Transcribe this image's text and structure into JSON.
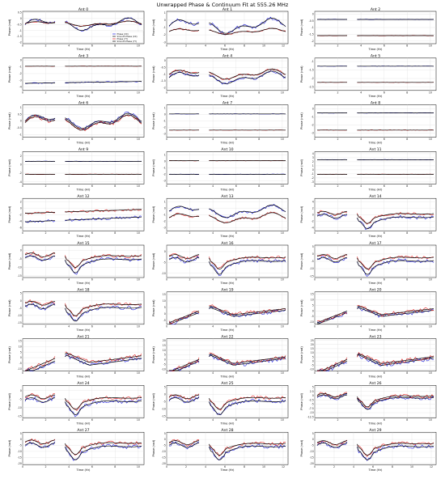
{
  "figure": {
    "title": "Unwrapped Phase & Continuum Fit at 555.26 MHz",
    "xlabel": "Time (Hr)",
    "ylabel": "Phase (rad)",
    "legend": [
      "Phase (XX)",
      "Smooth Phase (XX)",
      "Phase (YY)",
      "Smooth Phase (YY)"
    ],
    "colors": {
      "xx": "#1f1fe0",
      "yy": "#e01f1f",
      "smooth": "#000000",
      "grid": "#d9d9d9"
    }
  },
  "chart_data": [
    {
      "type": "line",
      "title": "Ant 0",
      "xticks": [
        0,
        2,
        4,
        6,
        8,
        10
      ],
      "yticks": [
        -2.0,
        -1.5,
        -1.0,
        -0.5,
        0.0,
        0.5
      ],
      "ylim": [
        -2.1,
        0.6
      ],
      "xlim": [
        0,
        10.5
      ],
      "series": [
        {
          "name": "Phase (XX)",
          "shape": "wiggle",
          "level": 0.6,
          "amp": 0.25
        },
        {
          "name": "Phase (YY)",
          "shape": "wiggle",
          "level": 0.62,
          "amp": 0.1
        }
      ]
    },
    {
      "type": "line",
      "title": "Ant 1",
      "xticks": [
        0,
        2,
        4,
        6,
        8,
        10,
        12
      ],
      "yticks": [
        -3,
        -2,
        -1,
        0,
        1
      ],
      "ylim": [
        -3.2,
        1.2
      ],
      "xlim": [
        0,
        12.5
      ],
      "series": [
        {
          "name": "Phase (XX)",
          "shape": "wiggle",
          "level": 0.55,
          "amp": 0.3
        },
        {
          "name": "Phase (YY)",
          "shape": "wiggle",
          "level": 0.38,
          "amp": 0.12
        }
      ]
    },
    {
      "type": "line",
      "title": "Ant 2",
      "xticks": [
        0,
        2,
        4,
        6,
        8,
        10
      ],
      "yticks": [
        -2.0,
        -1.5,
        -1.0,
        -0.5,
        0.0
      ],
      "ylim": [
        -2.2,
        0.2
      ],
      "xlim": [
        0,
        10.5
      ],
      "series": [
        {
          "name": "Phase (YY)",
          "shape": "flat",
          "level": 0.25,
          "amp": 0.05
        },
        {
          "name": "Phase (XX)",
          "shape": "flat",
          "level": 0.75,
          "amp": 0.05
        }
      ]
    },
    {
      "type": "line",
      "title": "Ant 3",
      "xticks": [
        0,
        2,
        4,
        6,
        8,
        10
      ],
      "yticks": [
        -4,
        -3,
        -2,
        -1,
        0
      ],
      "ylim": [
        -4.5,
        0.3
      ],
      "xlim": [
        0,
        10.5
      ],
      "series": [
        {
          "name": "Phase (XX)",
          "shape": "rise",
          "level": 0.25,
          "amp": 0.1
        },
        {
          "name": "Phase (YY)",
          "shape": "flat",
          "level": 0.75,
          "amp": 0.04
        }
      ]
    },
    {
      "type": "line",
      "title": "Ant 4",
      "xticks": [
        0,
        2,
        4,
        6,
        8,
        10
      ],
      "yticks": [
        -2.0,
        -1.5,
        -1.0,
        -0.5,
        0.0
      ],
      "ylim": [
        -2.2,
        0.2
      ],
      "xlim": [
        0,
        10.5
      ],
      "series": [
        {
          "name": "Phase (XX)",
          "shape": "wiggle",
          "level": 0.4,
          "amp": 0.25
        },
        {
          "name": "Phase (YY)",
          "shape": "wiggle",
          "level": 0.5,
          "amp": 0.2
        }
      ]
    },
    {
      "type": "line",
      "title": "Ant 5",
      "xticks": [
        0,
        2,
        4,
        6,
        8,
        10
      ],
      "yticks": [
        -2.5,
        -2.0,
        -1.5,
        -1.0
      ],
      "ylim": [
        -2.7,
        -0.8
      ],
      "xlim": [
        0,
        10.5
      ],
      "series": [
        {
          "name": "Phase (YY)",
          "shape": "flat",
          "level": 0.25,
          "amp": 0.04
        },
        {
          "name": "Phase (XX)",
          "shape": "flat",
          "level": 0.75,
          "amp": 0.04
        }
      ]
    },
    {
      "type": "line",
      "title": "Ant 6",
      "xticks": [
        0,
        2,
        4,
        6,
        8,
        10
      ],
      "yticks": [
        -1.0,
        -0.5,
        0.0,
        0.5,
        1.0
      ],
      "ylim": [
        -1.2,
        1.2
      ],
      "xlim": [
        0,
        10.5
      ],
      "series": [
        {
          "name": "Phase (XX)",
          "shape": "wiggle",
          "level": 0.5,
          "amp": 0.3
        },
        {
          "name": "Phase (YY)",
          "shape": "wiggle",
          "level": 0.45,
          "amp": 0.3
        }
      ]
    },
    {
      "type": "line",
      "title": "Ant 7",
      "xticks": [
        0,
        2,
        4,
        6,
        8,
        10
      ],
      "yticks": [
        -3,
        -2,
        -1,
        0,
        1
      ],
      "ylim": [
        -3.5,
        1.5
      ],
      "xlim": [
        0,
        10.5
      ],
      "series": [
        {
          "name": "Phase (YY)",
          "shape": "flat",
          "level": 0.22,
          "amp": 0.05
        },
        {
          "name": "Phase (XX)",
          "shape": "flat",
          "level": 0.72,
          "amp": 0.04
        }
      ]
    },
    {
      "type": "line",
      "title": "Ant 8",
      "xticks": [
        0,
        2,
        4,
        6,
        8,
        10
      ],
      "yticks": [
        -3,
        -2,
        -1,
        0
      ],
      "ylim": [
        -3.5,
        0.5
      ],
      "xlim": [
        0,
        10.5
      ],
      "series": [
        {
          "name": "Phase (YY)",
          "shape": "flat",
          "level": 0.22,
          "amp": 0.06
        },
        {
          "name": "Phase (XX)",
          "shape": "flat",
          "level": 0.75,
          "amp": 0.05
        }
      ]
    },
    {
      "type": "line",
      "title": "Ant 9",
      "xticks": [
        0,
        2,
        4,
        6,
        8,
        10
      ],
      "yticks": [
        -4,
        -2,
        0,
        2
      ],
      "ylim": [
        -4.5,
        3
      ],
      "xlim": [
        0,
        10.5
      ],
      "series": [
        {
          "name": "Phase (YY)",
          "shape": "flat",
          "level": 0.3,
          "amp": 0.05
        },
        {
          "name": "Phase (XX)",
          "shape": "flat",
          "level": 0.7,
          "amp": 0.04
        }
      ]
    },
    {
      "type": "line",
      "title": "Ant 10",
      "xticks": [
        0,
        2,
        4,
        6,
        8,
        10
      ],
      "yticks": [
        -3,
        -2,
        -1,
        0,
        1
      ],
      "ylim": [
        -3.5,
        1.5
      ],
      "xlim": [
        0,
        10.5
      ],
      "series": [
        {
          "name": "Phase (XX)",
          "shape": "flat",
          "level": 0.3,
          "amp": 0.05
        },
        {
          "name": "Phase (YY)",
          "shape": "flat",
          "level": 0.72,
          "amp": 0.04
        }
      ]
    },
    {
      "type": "line",
      "title": "Ant 11",
      "xticks": [
        0,
        2,
        4,
        6,
        8,
        10
      ],
      "yticks": [
        -3,
        -2,
        -1,
        0,
        1,
        2,
        3,
        4
      ],
      "ylim": [
        -3.5,
        4.5
      ],
      "xlim": [
        0,
        10.5
      ],
      "series": [
        {
          "name": "Phase (YY)",
          "shape": "flat",
          "level": 0.3,
          "amp": 0.04
        },
        {
          "name": "Phase (XX)",
          "shape": "flat",
          "level": 0.75,
          "amp": 0.04
        }
      ]
    },
    {
      "type": "line",
      "title": "Ant 12",
      "xticks": [
        0,
        2,
        4,
        6,
        8,
        10
      ],
      "yticks": [
        -6,
        -4,
        -2,
        0,
        2
      ],
      "ylim": [
        -7,
        3
      ],
      "xlim": [
        0,
        10.5
      ],
      "series": [
        {
          "name": "Phase (XX)",
          "shape": "rise",
          "level": 0.35,
          "amp": 0.25
        },
        {
          "name": "Phase (YY)",
          "shape": "rise",
          "level": 0.6,
          "amp": 0.2
        }
      ]
    },
    {
      "type": "line",
      "title": "Ant 13",
      "xticks": [
        0,
        2,
        4,
        6,
        8,
        10
      ],
      "yticks": [
        -3,
        -2,
        -1,
        0,
        1
      ],
      "ylim": [
        -3.5,
        1.5
      ],
      "xlim": [
        0,
        10.5
      ],
      "series": [
        {
          "name": "Phase (XX)",
          "shape": "wiggle",
          "level": 0.6,
          "amp": 0.25
        },
        {
          "name": "Phase (YY)",
          "shape": "wiggle",
          "level": 0.4,
          "amp": 0.2
        }
      ]
    },
    {
      "type": "line",
      "title": "Ant 14",
      "xticks": [
        0,
        2,
        4,
        6,
        8,
        10
      ],
      "yticks": [
        -4,
        -2,
        0,
        2,
        4
      ],
      "ylim": [
        -5,
        5
      ],
      "xlim": [
        0,
        10.5
      ],
      "series": [
        {
          "name": "Phase (XX)",
          "shape": "dip",
          "level": 0.45,
          "amp": 0.3
        },
        {
          "name": "Phase (YY)",
          "shape": "dip",
          "level": 0.55,
          "amp": 0.25
        }
      ]
    },
    {
      "type": "line",
      "title": "Ant 15",
      "xticks": [
        0,
        2,
        4,
        6,
        8,
        10
      ],
      "yticks": [
        -15,
        -10,
        -5,
        0
      ],
      "ylim": [
        -16,
        3
      ],
      "xlim": [
        0,
        10.5
      ],
      "series": [
        {
          "name": "Phase (XX)",
          "shape": "dip",
          "level": 0.6,
          "amp": 0.35
        },
        {
          "name": "Phase (YY)",
          "shape": "dip",
          "level": 0.7,
          "amp": 0.3
        }
      ]
    },
    {
      "type": "line",
      "title": "Ant 16",
      "xticks": [
        0,
        2,
        4,
        6,
        8,
        10
      ],
      "yticks": [
        -10,
        -5,
        0
      ],
      "ylim": [
        -12,
        3
      ],
      "xlim": [
        0,
        10.5
      ],
      "series": [
        {
          "name": "Phase (XX)",
          "shape": "dip",
          "level": 0.55,
          "amp": 0.35
        },
        {
          "name": "Phase (YY)",
          "shape": "dip",
          "level": 0.65,
          "amp": 0.3
        }
      ]
    },
    {
      "type": "line",
      "title": "Ant 17",
      "xticks": [
        0,
        2,
        4,
        6,
        8,
        10
      ],
      "yticks": [
        -15,
        -10,
        -5,
        0,
        5
      ],
      "ylim": [
        -16,
        6
      ],
      "xlim": [
        0,
        10.5
      ],
      "series": [
        {
          "name": "Phase (XX)",
          "shape": "dip",
          "level": 0.55,
          "amp": 0.35
        },
        {
          "name": "Phase (YY)",
          "shape": "dip",
          "level": 0.65,
          "amp": 0.3
        }
      ]
    },
    {
      "type": "line",
      "title": "Ant 18",
      "xticks": [
        0,
        2,
        4,
        6,
        8,
        10
      ],
      "yticks": [
        -15,
        -10,
        -5,
        0,
        5
      ],
      "ylim": [
        -16,
        6
      ],
      "xlim": [
        0,
        10.5
      ],
      "series": [
        {
          "name": "Phase (XX)",
          "shape": "dip",
          "level": 0.55,
          "amp": 0.35
        },
        {
          "name": "Phase (YY)",
          "shape": "dip",
          "level": 0.65,
          "amp": 0.3
        }
      ]
    },
    {
      "type": "line",
      "title": "Ant 19",
      "xticks": [
        0,
        2,
        4,
        6,
        8,
        10
      ],
      "yticks": [
        -5,
        0,
        5,
        10,
        15
      ],
      "ylim": [
        -8,
        17
      ],
      "xlim": [
        0,
        10.5
      ],
      "series": [
        {
          "name": "Phase (XX)",
          "shape": "hump",
          "level": 0.35,
          "amp": 0.35
        },
        {
          "name": "Phase (YY)",
          "shape": "hump",
          "level": 0.4,
          "amp": 0.35
        }
      ]
    },
    {
      "type": "line",
      "title": "Ant 20",
      "xticks": [
        0,
        2,
        4,
        6,
        8,
        10
      ],
      "yticks": [
        -10,
        -5,
        0,
        5,
        10,
        15
      ],
      "ylim": [
        -12,
        17
      ],
      "xlim": [
        0,
        10.5
      ],
      "series": [
        {
          "name": "Phase (XX)",
          "shape": "hump",
          "level": 0.35,
          "amp": 0.35
        },
        {
          "name": "Phase (YY)",
          "shape": "hump",
          "level": 0.4,
          "amp": 0.35
        }
      ]
    },
    {
      "type": "line",
      "title": "Ant 21",
      "xticks": [
        0,
        2,
        4,
        6,
        8,
        10
      ],
      "yticks": [
        -10,
        -5,
        0,
        5,
        10,
        15
      ],
      "ylim": [
        -12,
        17
      ],
      "xlim": [
        0,
        10.5
      ],
      "series": [
        {
          "name": "Phase (XX)",
          "shape": "hump",
          "level": 0.3,
          "amp": 0.4
        },
        {
          "name": "Phase (YY)",
          "shape": "hump",
          "level": 0.38,
          "amp": 0.38
        }
      ]
    },
    {
      "type": "line",
      "title": "Ant 22",
      "xticks": [
        0,
        2,
        4,
        6,
        8,
        10
      ],
      "yticks": [
        -10,
        -5,
        0,
        5,
        10,
        15,
        20
      ],
      "ylim": [
        -12,
        22
      ],
      "xlim": [
        0,
        10.5
      ],
      "series": [
        {
          "name": "Phase (XX)",
          "shape": "hump",
          "level": 0.3,
          "amp": 0.4
        },
        {
          "name": "Phase (YY)",
          "shape": "hump",
          "level": 0.35,
          "amp": 0.38
        }
      ]
    },
    {
      "type": "line",
      "title": "Ant 23",
      "xticks": [
        0,
        2,
        4,
        6,
        8,
        10
      ],
      "yticks": [
        -10,
        -5,
        0,
        5,
        10,
        15,
        20,
        25
      ],
      "ylim": [
        -12,
        27
      ],
      "xlim": [
        0,
        10.5
      ],
      "series": [
        {
          "name": "Phase (XX)",
          "shape": "hump",
          "level": 0.3,
          "amp": 0.42
        },
        {
          "name": "Phase (YY)",
          "shape": "hump",
          "level": 0.35,
          "amp": 0.4
        }
      ]
    },
    {
      "type": "line",
      "title": "Ant 24",
      "xticks": [
        0,
        2,
        4,
        6,
        8,
        10
      ],
      "yticks": [
        -15,
        -10,
        -5,
        0
      ],
      "ylim": [
        -16,
        3
      ],
      "xlim": [
        0,
        10.5
      ],
      "series": [
        {
          "name": "Phase (XX)",
          "shape": "dip",
          "level": 0.55,
          "amp": 0.35
        },
        {
          "name": "Phase (YY)",
          "shape": "dip",
          "level": 0.65,
          "amp": 0.3
        }
      ]
    },
    {
      "type": "line",
      "title": "Ant 25",
      "xticks": [
        0,
        2,
        4,
        6,
        8,
        10
      ],
      "yticks": [
        -15,
        -10,
        -5,
        0,
        5
      ],
      "ylim": [
        -16,
        6
      ],
      "xlim": [
        0,
        10.5
      ],
      "series": [
        {
          "name": "Phase (XX)",
          "shape": "dip",
          "level": 0.55,
          "amp": 0.35
        },
        {
          "name": "Phase (YY)",
          "shape": "dip",
          "level": 0.65,
          "amp": 0.3
        }
      ]
    },
    {
      "type": "line",
      "title": "Ant 26",
      "xticks": [
        0,
        2,
        4,
        6,
        8,
        10
      ],
      "yticks": [
        -12.5,
        -10.0,
        -7.5,
        -5.0,
        -2.5,
        0.0,
        2.5,
        5.0
      ],
      "ylim": [
        -13,
        6
      ],
      "xlim": [
        0,
        10.5
      ],
      "series": [
        {
          "name": "Phase (XX)",
          "shape": "dip",
          "level": 0.65,
          "amp": 0.3
        },
        {
          "name": "Phase (YY)",
          "shape": "dip",
          "level": 0.7,
          "amp": 0.28
        }
      ]
    },
    {
      "type": "line",
      "title": "Ant 27",
      "xticks": [
        0,
        2,
        4,
        6,
        8,
        10
      ],
      "yticks": [
        -20,
        -15,
        -10,
        -5,
        0,
        5
      ],
      "ylim": [
        -21,
        6
      ],
      "xlim": [
        0,
        10.5
      ],
      "series": [
        {
          "name": "Phase (XX)",
          "shape": "dip",
          "level": 0.6,
          "amp": 0.35
        },
        {
          "name": "Phase (YY)",
          "shape": "dip",
          "level": 0.7,
          "amp": 0.3
        }
      ]
    },
    {
      "type": "line",
      "title": "Ant 28",
      "xticks": [
        0,
        2,
        4,
        6,
        8,
        10,
        12
      ],
      "yticks": [
        -20,
        -15,
        -10,
        -5,
        0,
        5
      ],
      "ylim": [
        -21,
        6
      ],
      "xlim": [
        0,
        12.5
      ],
      "series": [
        {
          "name": "Phase (XX)",
          "shape": "dip",
          "level": 0.6,
          "amp": 0.35
        },
        {
          "name": "Phase (YY)",
          "shape": "dip",
          "level": 0.68,
          "amp": 0.3
        }
      ]
    },
    {
      "type": "line",
      "title": "Ant 29",
      "xticks": [
        0,
        2,
        4,
        6,
        8,
        10,
        12
      ],
      "yticks": [
        -20,
        -15,
        -10,
        -5,
        0,
        5
      ],
      "ylim": [
        -21,
        6
      ],
      "xlim": [
        0,
        12.5
      ],
      "series": [
        {
          "name": "Phase (XX)",
          "shape": "dip",
          "level": 0.6,
          "amp": 0.35
        },
        {
          "name": "Phase (YY)",
          "shape": "dip",
          "level": 0.68,
          "amp": 0.3
        }
      ]
    }
  ]
}
